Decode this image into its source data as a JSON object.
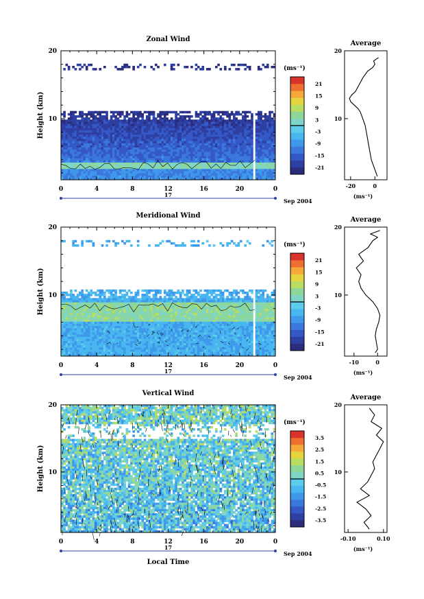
{
  "chart_data": [
    {
      "type": "heatmap",
      "title": "Zonal Wind",
      "xlabel": "",
      "ylabel": "Height (km)",
      "x_ticks": [
        "0",
        "4",
        "8",
        "12",
        "16",
        "20",
        "0"
      ],
      "y_ticks": [
        "20",
        "10"
      ],
      "date_label": "17",
      "date_suffix": "Sep 2004",
      "colorbar_unit": "(ms⁻¹)",
      "colorbar_ticks": [
        "21",
        "15",
        "9",
        "3",
        "-3",
        "-9",
        "-15",
        "-21"
      ],
      "xlim": [
        0,
        24
      ],
      "ylim": [
        1,
        20
      ],
      "clim": [
        -24,
        24
      ],
      "field": {
        "blank_above_km": 11.2,
        "sparse_layer_km": [
          17.2,
          18.2
        ],
        "surface_value": -9,
        "top_value": -21,
        "contour_levels": [
          -3
        ],
        "gap_hour": 21.6
      },
      "average": {
        "title": "Average",
        "x_ticks": [
          "-20",
          "0"
        ],
        "unit": "(ms⁻¹)",
        "xlim": [
          -25,
          10
        ],
        "height": [
          1.5,
          2,
          2.5,
          3,
          3.5,
          4,
          5,
          6,
          7,
          8,
          9,
          10,
          11,
          11.5,
          12,
          12.5,
          13,
          13.5,
          14,
          15,
          16,
          17,
          17.5,
          18,
          18.5,
          19
        ],
        "value": [
          2,
          1,
          0,
          -1,
          -2,
          -3,
          -4,
          -5,
          -6,
          -7,
          -8,
          -10,
          -12,
          -14,
          -17,
          -20,
          -21,
          -19,
          -16,
          -13,
          -10,
          -6,
          -2,
          0,
          -1,
          3
        ]
      }
    },
    {
      "type": "heatmap",
      "title": "Meridional Wind",
      "xlabel": "",
      "ylabel": "Height (km)",
      "x_ticks": [
        "0",
        "4",
        "8",
        "12",
        "16",
        "20",
        "0"
      ],
      "y_ticks": [
        "20",
        "10"
      ],
      "date_label": "17",
      "date_suffix": "Sep 2004",
      "colorbar_unit": "(ms⁻¹)",
      "colorbar_ticks": [
        "21",
        "15",
        "9",
        "3",
        "-3",
        "-9",
        "-15",
        "-21"
      ],
      "xlim": [
        0,
        24
      ],
      "ylim": [
        1,
        20
      ],
      "clim": [
        -24,
        24
      ],
      "field": {
        "blank_above_km": 10.8,
        "sparse_layer_km": [
          17.2,
          18.2
        ],
        "surface_value": -6,
        "top_value": -6,
        "contour_levels": [
          -3
        ],
        "gap_hour": 21.6
      },
      "average": {
        "title": "Average",
        "x_ticks": [
          "-10",
          "0"
        ],
        "unit": "(ms⁻¹)",
        "xlim": [
          -14,
          4
        ],
        "height": [
          1.5,
          2,
          3,
          4,
          5,
          6,
          7,
          8,
          9,
          10,
          11,
          12,
          13,
          14,
          15,
          16,
          17,
          18,
          18.5,
          19,
          19.5
        ],
        "value": [
          -1,
          0,
          -0.5,
          -1,
          -0.5,
          0.5,
          1,
          0,
          -2,
          -5,
          -7,
          -8,
          -7,
          -9,
          -6,
          -8,
          -4,
          -2,
          0,
          -3,
          1
        ]
      }
    },
    {
      "type": "heatmap",
      "title": "Vertical Wind",
      "xlabel": "Local Time",
      "ylabel": "Height (km)",
      "x_ticks": [
        "0",
        "4",
        "8",
        "12",
        "16",
        "20",
        "0"
      ],
      "y_ticks": [
        "20",
        "10"
      ],
      "date_label": "17",
      "date_suffix": "Sep 2004",
      "colorbar_unit": "(ms⁻¹)",
      "colorbar_ticks": [
        "3.5",
        "2.5",
        "1.5",
        "0.5",
        "-0.5",
        "-1.5",
        "-2.5",
        "-3.5"
      ],
      "xlim": [
        0,
        24
      ],
      "ylim": [
        1,
        20
      ],
      "clim": [
        -4,
        4
      ],
      "field": {
        "blank_above_km": 20.5,
        "sparse_layer_km": [],
        "surface_value": -0.5,
        "top_value": 0.2,
        "contour_levels": [
          0
        ],
        "gap_hour": -1
      },
      "average": {
        "title": "Average",
        "x_ticks": [
          "-0.10",
          "0.10"
        ],
        "unit": "(ms⁻¹)",
        "xlim": [
          -0.12,
          0.12
        ],
        "height": [
          1.5,
          2.5,
          3.5,
          4.5,
          5.5,
          6.5,
          7.5,
          8.5,
          9.5,
          10.5,
          11.5,
          12.5,
          13.5,
          14.5,
          15.5,
          16.5,
          17.5,
          18.5,
          19.5
        ],
        "value": [
          0.02,
          -0.01,
          0.03,
          0.0,
          -0.05,
          0.02,
          -0.03,
          0.01,
          0.03,
          0.05,
          0.04,
          0.06,
          0.08,
          0.1,
          0.06,
          0.09,
          0.03,
          0.05,
          0.02
        ]
      }
    }
  ]
}
